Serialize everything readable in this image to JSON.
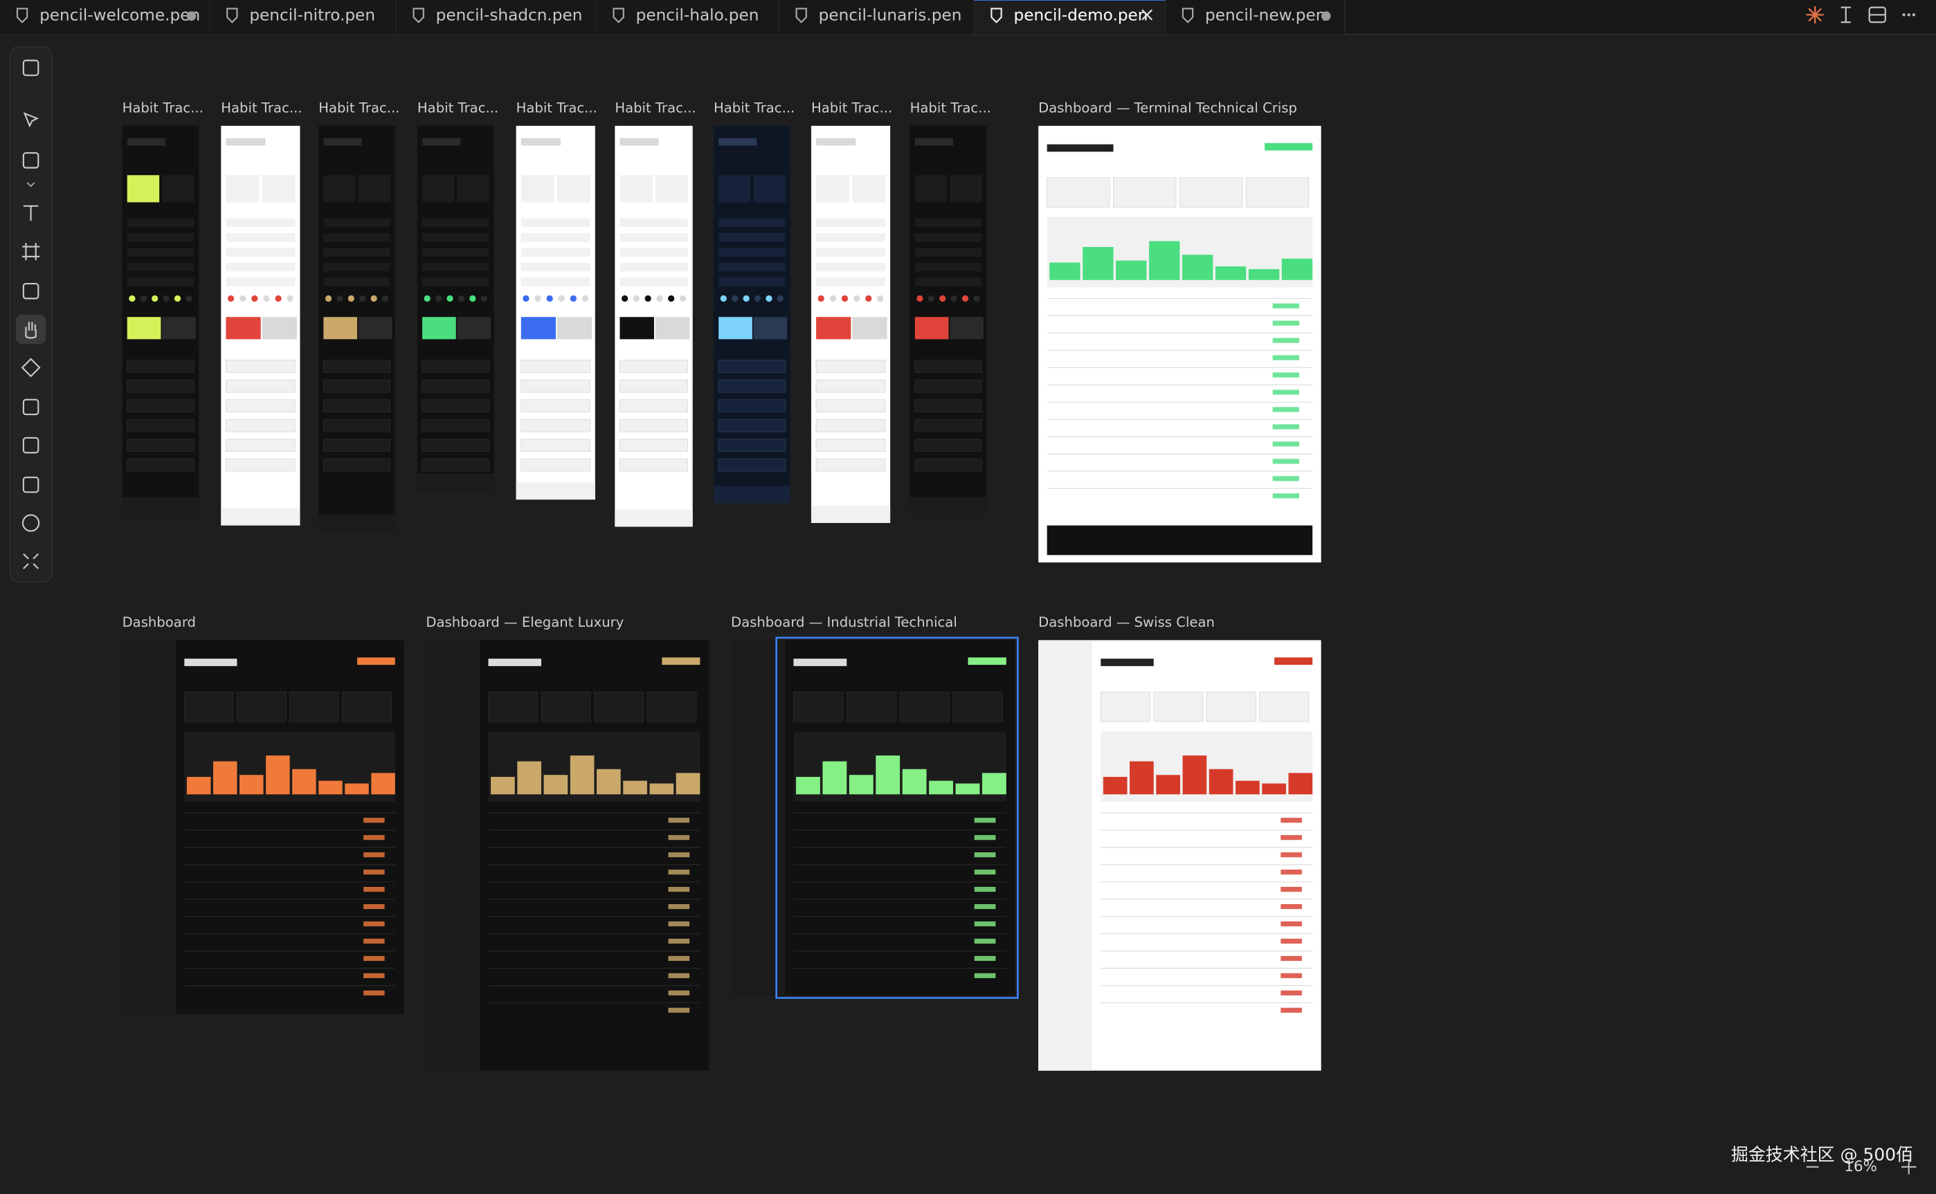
{
  "tabs": [
    {
      "label": "pencil-welcome.pen",
      "unsaved": true
    },
    {
      "label": "pencil-nitro.pen"
    },
    {
      "label": "pencil-shadcn.pen"
    },
    {
      "label": "pencil-halo.pen"
    },
    {
      "label": "pencil-lunaris.pen"
    },
    {
      "label": "pencil-demo.pen",
      "active": true
    },
    {
      "label": "pencil-new.pen",
      "unsaved": true
    }
  ],
  "frames": [
    {
      "label": "Habit Trac...",
      "theme": "dark",
      "accent": "#d4f25a"
    },
    {
      "label": "Habit Trac...",
      "theme": "light",
      "accent": "#e0443a"
    },
    {
      "label": "Habit Trac...",
      "theme": "dark",
      "accent": "#c9a86a"
    },
    {
      "label": "Habit Trac...",
      "theme": "dark",
      "accent": "#4ade80"
    },
    {
      "label": "Habit Trac...",
      "theme": "light",
      "accent": "#3b6cf0"
    },
    {
      "label": "Habit Trac...",
      "theme": "light",
      "accent": "#111111"
    },
    {
      "label": "Habit Trac...",
      "theme": "navy",
      "accent": "#7dd3fc"
    },
    {
      "label": "Habit Trac...",
      "theme": "light",
      "accent": "#e0443a"
    },
    {
      "label": "Habit Trac...",
      "theme": "dark",
      "accent": "#e0443a"
    },
    {
      "label": "Dashboard — Terminal Technical Crisp",
      "theme": "light",
      "accent": "#4ade80"
    },
    {
      "label": "Dashboard",
      "theme": "dark",
      "accent": "#f07a3a"
    },
    {
      "label": "Dashboard — Elegant Luxury",
      "theme": "dark",
      "accent": "#c9a86a"
    },
    {
      "label": "Dashboard — Industrial Technical",
      "theme": "dark",
      "accent": "#86ef86",
      "selected": true
    },
    {
      "label": "Dashboard — Swiss Clean",
      "theme": "light",
      "accent": "#d63b2a"
    }
  ],
  "zoom": "16%",
  "watermark": "掘金技术社区 @ 500佰"
}
